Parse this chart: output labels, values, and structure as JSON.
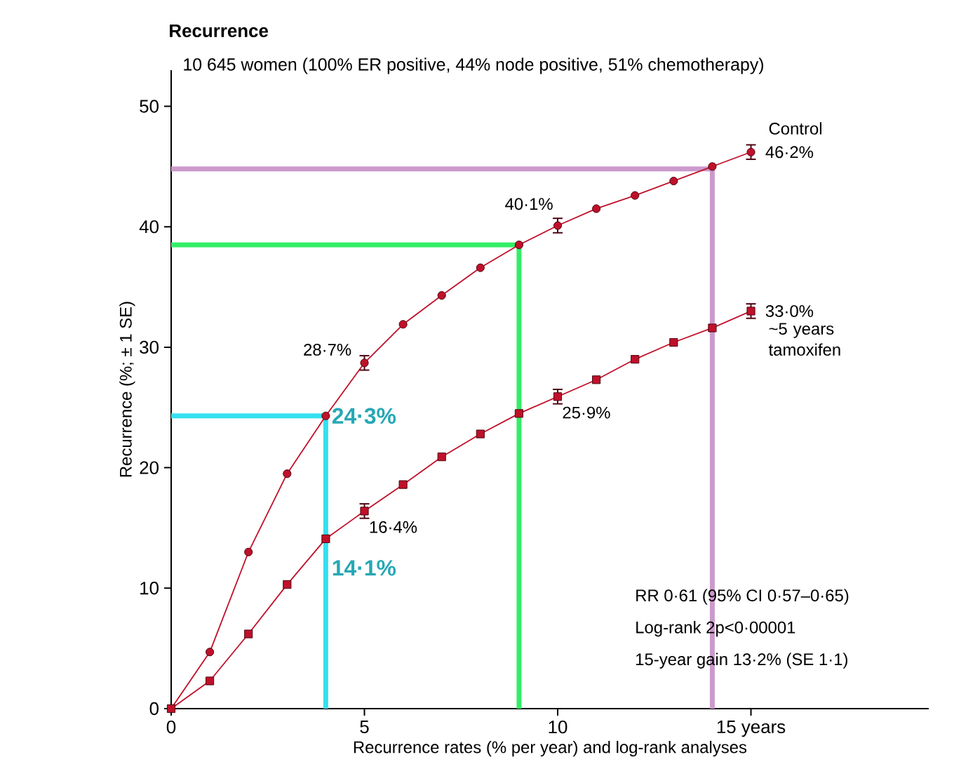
{
  "chart_data": {
    "type": "line",
    "title": "Recurrence",
    "subtitle": "10 645 women (100% ER positive, 44% node positive, 51% chemotherapy)",
    "xlabel": "Recurrence rates (% per year) and log-rank analyses",
    "ylabel": "Recurrence (%; ± 1 SE)",
    "xlim": [
      0,
      19.6
    ],
    "ylim": [
      0,
      53
    ],
    "xticks": [
      0,
      5,
      10,
      {
        "value": 15,
        "label": "15 years"
      }
    ],
    "yticks": [
      0,
      10,
      20,
      30,
      40,
      50
    ],
    "x": [
      0,
      1,
      2,
      3,
      4,
      5,
      6,
      7,
      8,
      9,
      10,
      11,
      12,
      13,
      14,
      15
    ],
    "series": [
      {
        "color": "#33e0f0",
        "marker": "none",
        "x": [
          0,
          4,
          4
        ],
        "values": [
          24.3,
          24.3,
          0
        ]
      },
      {
        "color": "#33ee66",
        "marker": "none",
        "x": [
          0,
          9,
          9
        ],
        "values": [
          38.5,
          38.5,
          0
        ]
      },
      {
        "color": "#cc99cc",
        "marker": "none",
        "x": [
          0,
          14,
          14
        ],
        "values": [
          44.8,
          44.8,
          0
        ]
      },
      {
        "name": "Control",
        "color": "#c0102a",
        "marker": "circle",
        "values": [
          0,
          4.7,
          13.0,
          19.5,
          24.3,
          28.7,
          31.9,
          34.3,
          36.6,
          38.5,
          40.1,
          41.5,
          42.6,
          43.8,
          45.0,
          46.2
        ],
        "errors": [
          null,
          null,
          null,
          null,
          null,
          0.6,
          null,
          null,
          null,
          null,
          0.6,
          null,
          null,
          null,
          null,
          0.6
        ]
      },
      {
        "name": "~5 years tamoxifen",
        "color": "#c0102a",
        "marker": "square",
        "values": [
          0,
          2.3,
          6.2,
          10.3,
          14.1,
          16.4,
          18.6,
          20.9,
          22.8,
          24.5,
          25.9,
          27.3,
          29.0,
          30.4,
          31.6,
          33.0
        ],
        "errors": [
          null,
          null,
          null,
          null,
          null,
          0.6,
          null,
          null,
          null,
          null,
          0.6,
          null,
          null,
          null,
          null,
          0.6
        ]
      }
    ],
    "annotations": [
      {
        "text": "24·3%",
        "x": 4,
        "y": 24.3
      },
      {
        "text": "14·1%",
        "x": 4,
        "y": 14.1
      },
      {
        "text": "28·7%",
        "x": 5,
        "y": 28.7
      },
      {
        "text": "40·1%",
        "x": 10,
        "y": 40.1
      },
      {
        "text": "16·4%",
        "x": 5,
        "y": 16.4
      },
      {
        "text": "25·9%",
        "x": 10,
        "y": 25.9
      },
      {
        "text": "46·2%",
        "x": 15,
        "y": 46.2
      },
      {
        "text": "33·0%",
        "x": 15,
        "y": 33.0
      },
      "RR 0·61 (95% CI 0·57–0·65)",
      "Log-rank 2p<0·00001",
      "15-year gain 13·2% (SE 1·1)"
    ]
  }
}
